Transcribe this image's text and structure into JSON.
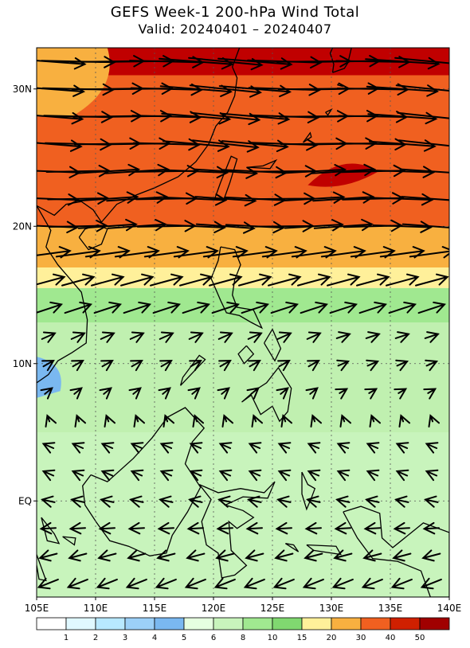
{
  "title": "GEFS Week-1 200-hPa Wind Total",
  "subtitle": "Valid: 20240401 – 20240407",
  "map": {
    "lon_range": [
      105,
      140
    ],
    "lat_range": [
      -7,
      33
    ],
    "lat_ticks": [
      {
        "lat": 30,
        "label": "30N"
      },
      {
        "lat": 20,
        "label": "20N"
      },
      {
        "lat": 10,
        "label": "10N"
      },
      {
        "lat": 0,
        "label": "EQ"
      }
    ],
    "lon_ticks": [
      {
        "lon": 105,
        "label": "105E"
      },
      {
        "lon": 110,
        "label": "110E"
      },
      {
        "lon": 115,
        "label": "115E"
      },
      {
        "lon": 120,
        "label": "120E"
      },
      {
        "lon": 125,
        "label": "125E"
      },
      {
        "lon": 130,
        "label": "130E"
      },
      {
        "lon": 135,
        "label": "135E"
      },
      {
        "lon": 140,
        "label": "140E"
      }
    ],
    "gridlines": "dotted",
    "wind_bands": [
      {
        "lat_max": 33,
        "lat_min": 31,
        "color": "#c00000"
      },
      {
        "lat_max": 31,
        "lat_min": 20,
        "color": "#f06020"
      },
      {
        "lat_max": 20,
        "lat_min": 17,
        "color": "#f8b040"
      },
      {
        "lat_max": 17,
        "lat_min": 15.5,
        "color": "#fff09a"
      },
      {
        "lat_max": 15.5,
        "lat_min": 13,
        "color": "#a0e890"
      },
      {
        "lat_max": 13,
        "lat_min": 5,
        "color": "#c0f0b0"
      },
      {
        "lat_max": 5,
        "lat_min": -7,
        "color": "#c8f4bc"
      }
    ]
  },
  "colorbar": {
    "labels": [
      "1",
      "2",
      "3",
      "4",
      "5",
      "6",
      "8",
      "10",
      "15",
      "20",
      "30",
      "40",
      "50"
    ],
    "colors": [
      "#ffffff",
      "#e0f8ff",
      "#b8e8ff",
      "#9cd0f8",
      "#7ab8f0",
      "#e6ffe0",
      "#c8f4bc",
      "#a0e890",
      "#80d870",
      "#fff09a",
      "#f8b040",
      "#f06020",
      "#d02000",
      "#a00000"
    ]
  }
}
